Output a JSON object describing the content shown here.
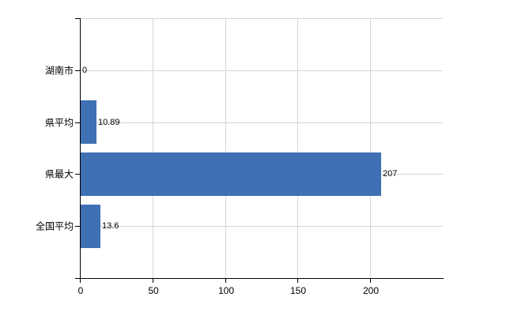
{
  "chart_data": {
    "type": "bar",
    "orientation": "horizontal",
    "title": "",
    "categories": [
      "湖南市",
      "県平均",
      "県最大",
      "全国平均"
    ],
    "values": [
      0,
      10.89,
      207,
      13.6
    ],
    "value_labels": [
      "0",
      "10.89",
      "207",
      "13.6"
    ],
    "x_ticks": [
      0,
      50,
      100,
      150,
      200
    ],
    "x_tick_labels": [
      "0",
      "50",
      "100",
      "150",
      "200"
    ],
    "xlim": [
      0,
      250
    ],
    "grid": true,
    "legend": false,
    "colors": {
      "bar": "#4070b4",
      "grid": "#d6d6d6",
      "axis": "#000000",
      "text": "#000000",
      "background": "#ffffff"
    }
  }
}
